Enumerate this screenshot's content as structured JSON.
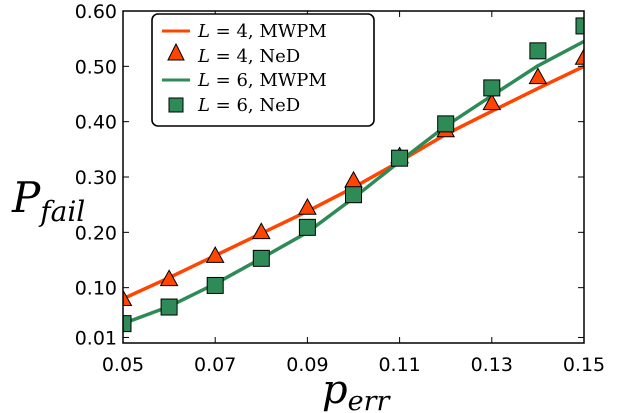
{
  "chart_data": {
    "type": "line",
    "xlabel_base": "p",
    "xlabel_sub": "err",
    "ylabel_base": "P",
    "ylabel_sub": "fail",
    "xlim": [
      0.05,
      0.15
    ],
    "ylim": [
      0.0,
      0.6
    ],
    "xticks": [
      0.05,
      0.07,
      0.09,
      0.11,
      0.13,
      0.15
    ],
    "xtick_labels": [
      "0.05",
      "0.07",
      "0.09",
      "0.11",
      "0.13",
      "0.15"
    ],
    "yticks": [
      0.01,
      0.1,
      0.2,
      0.3,
      0.4,
      0.5,
      0.6
    ],
    "ytick_labels": [
      "0.01",
      "0.10",
      "0.20",
      "0.30",
      "0.40",
      "0.50",
      "0.60"
    ],
    "legend_position": "top-left",
    "grid": false,
    "series": [
      {
        "name": "L = 4, MWPM",
        "kind": "line",
        "color": "#ff4500",
        "x": [
          0.05,
          0.06,
          0.07,
          0.08,
          0.09,
          0.1,
          0.11,
          0.12,
          0.13,
          0.14,
          0.15
        ],
        "y": [
          0.08,
          0.118,
          0.158,
          0.198,
          0.238,
          0.281,
          0.328,
          0.377,
          0.419,
          0.46,
          0.5
        ]
      },
      {
        "name": "L = 4, NeD",
        "kind": "marker",
        "marker": "triangle",
        "color": "#ff4500",
        "x": [
          0.05,
          0.06,
          0.07,
          0.08,
          0.09,
          0.1,
          0.11,
          0.12,
          0.13,
          0.14,
          0.15
        ],
        "y": [
          0.08,
          0.116,
          0.158,
          0.201,
          0.245,
          0.294,
          0.338,
          0.385,
          0.434,
          0.481,
          0.516
        ]
      },
      {
        "name": "L = 6, MWPM",
        "kind": "line",
        "color": "#2e8b57",
        "x": [
          0.05,
          0.06,
          0.07,
          0.08,
          0.09,
          0.1,
          0.11,
          0.12,
          0.13,
          0.14,
          0.15
        ],
        "y": [
          0.035,
          0.066,
          0.107,
          0.153,
          0.2,
          0.262,
          0.328,
          0.392,
          0.447,
          0.501,
          0.545
        ]
      },
      {
        "name": "L = 6, NeD",
        "kind": "marker",
        "marker": "square",
        "color": "#2e8b57",
        "x": [
          0.05,
          0.06,
          0.07,
          0.08,
          0.09,
          0.1,
          0.11,
          0.12,
          0.13,
          0.14,
          0.15
        ],
        "y": [
          0.035,
          0.065,
          0.104,
          0.153,
          0.209,
          0.268,
          0.334,
          0.396,
          0.461,
          0.528,
          0.573
        ]
      }
    ]
  },
  "legend": {
    "items": [
      {
        "var": "L",
        "eq": " = 4, ",
        "method": "MWPM"
      },
      {
        "var": "L",
        "eq": " = 4, ",
        "method": "NeD"
      },
      {
        "var": "L",
        "eq": " = 6, ",
        "method": "MWPM"
      },
      {
        "var": "L",
        "eq": " = 6, ",
        "method": "NeD"
      }
    ]
  }
}
